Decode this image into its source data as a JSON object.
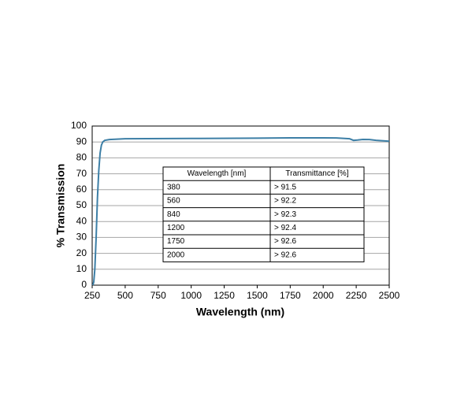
{
  "chart_data": {
    "type": "line",
    "x_label": "Wavelength (nm)",
    "y_label": "% Transmission",
    "x": [
      255,
      262,
      270,
      280,
      290,
      300,
      310,
      320,
      330,
      345,
      380,
      500,
      1000,
      1500,
      1750,
      2000,
      2100,
      2200,
      2230,
      2260,
      2300,
      2350,
      2400,
      2500
    ],
    "series": [
      {
        "name": "Transmission",
        "color": "#3d7fa6",
        "values": [
          0,
          2,
          10,
          30,
          55,
          72,
          83,
          88,
          90,
          91,
          91.5,
          92,
          92.2,
          92.4,
          92.6,
          92.6,
          92.5,
          92,
          91,
          91.2,
          91.6,
          91.5,
          91,
          90.5
        ]
      }
    ],
    "xlim": [
      250,
      2500
    ],
    "xticks": [
      250,
      500,
      750,
      1000,
      1250,
      1500,
      1750,
      2000,
      2250,
      2500
    ],
    "ylim": [
      0,
      100
    ],
    "yticks": [
      0,
      10,
      20,
      30,
      40,
      50,
      60,
      70,
      80,
      90,
      100
    ],
    "grid": true,
    "table": {
      "columns": [
        "Wavelength [nm]",
        "Transmittance [%]"
      ],
      "rows": [
        [
          "380",
          "> 91.5"
        ],
        [
          "560",
          "> 92.2"
        ],
        [
          "840",
          "> 92.3"
        ],
        [
          "1200",
          "> 92.4"
        ],
        [
          "1750",
          "> 92.6"
        ],
        [
          "2000",
          "> 92.6"
        ]
      ]
    }
  }
}
